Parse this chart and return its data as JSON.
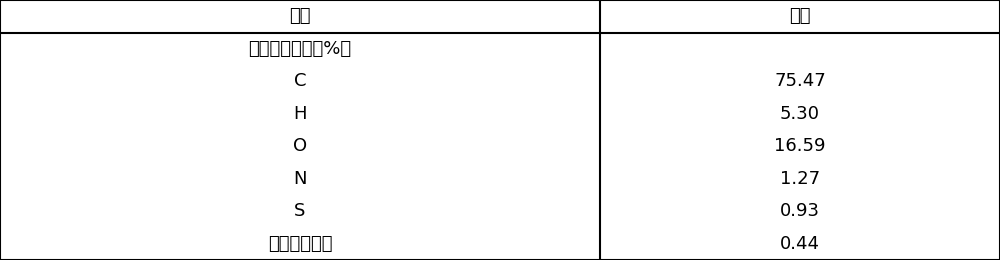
{
  "header_col1": "项目",
  "header_col2": "褐煤",
  "rows": [
    {
      "col1": "元素分析（重量%）",
      "col2": ""
    },
    {
      "col1": "C",
      "col2": "75.47"
    },
    {
      "col1": "H",
      "col2": "5.30"
    },
    {
      "col1": "O",
      "col2": "16.59"
    },
    {
      "col1": "N",
      "col2": "1.27"
    },
    {
      "col1": "S",
      "col2": "0.93"
    },
    {
      "col1": "其他微量元素",
      "col2": "0.44"
    }
  ],
  "background_color": "#ffffff",
  "border_color": "#000000",
  "text_color": "#000000",
  "font_size": 13,
  "col_div": 0.6,
  "fig_width": 10.0,
  "fig_height": 2.6
}
